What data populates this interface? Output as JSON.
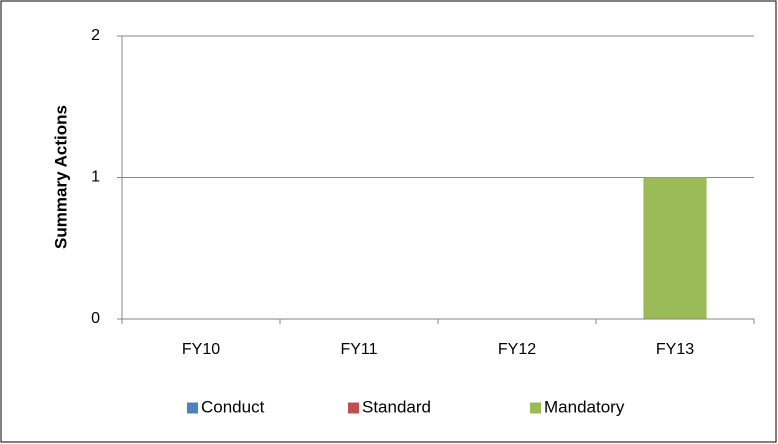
{
  "chart_data": {
    "type": "bar",
    "stacked": true,
    "y_label": "Summary Actions",
    "categories": [
      "FY10",
      "FY11",
      "FY12",
      "FY13"
    ],
    "series": [
      {
        "name": "Conduct",
        "color": "#4f81bd",
        "values": [
          0,
          0,
          0,
          0
        ]
      },
      {
        "name": "Standard",
        "color": "#c0504d",
        "values": [
          0,
          0,
          0,
          0
        ]
      },
      {
        "name": "Mandatory",
        "color": "#9bbb59",
        "values": [
          0,
          0,
          0,
          1
        ]
      }
    ],
    "ylim": [
      0,
      2
    ],
    "yticks": [
      0,
      1,
      2
    ],
    "grid": true,
    "legend": "bottom"
  }
}
